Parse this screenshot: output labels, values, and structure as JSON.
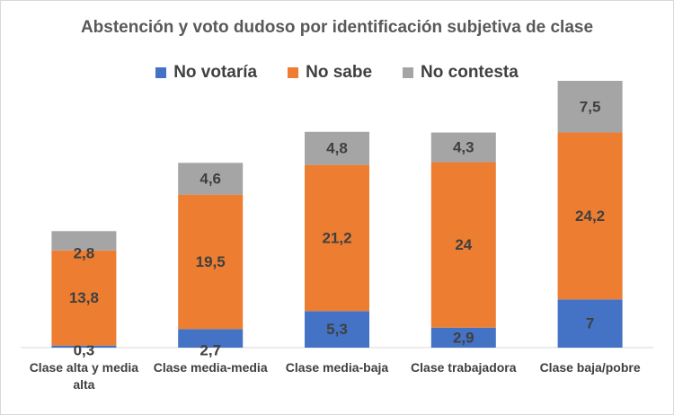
{
  "chart_data": {
    "type": "bar",
    "stacked": true,
    "title": "Abstención y voto dudoso por identificación subjetiva de clase",
    "xlabel": "",
    "ylabel": "",
    "ylim": [
      0,
      40
    ],
    "grid": false,
    "legend_position": "top",
    "categories": [
      "Clase alta y media alta",
      "Clase media-media",
      "Clase media-baja",
      "Clase trabajadora",
      "Clase baja/pobre"
    ],
    "category_lines": [
      [
        "Clase alta y media",
        "alta"
      ],
      [
        "Clase media-media"
      ],
      [
        "Clase media-baja"
      ],
      [
        "Clase trabajadora"
      ],
      [
        "Clase baja/pobre"
      ]
    ],
    "series": [
      {
        "name": "No votaría",
        "color": "#4472c4",
        "values": [
          0.3,
          2.7,
          5.3,
          2.9,
          7
        ],
        "labels": [
          "0,3",
          "2,7",
          "5,3",
          "2,9",
          "7"
        ]
      },
      {
        "name": "No sabe",
        "color": "#ed7d31",
        "values": [
          13.8,
          19.5,
          21.2,
          24,
          24.2
        ],
        "labels": [
          "13,8",
          "19,5",
          "21,2",
          "24",
          "24,2"
        ]
      },
      {
        "name": "No contesta",
        "color": "#a5a5a5",
        "values": [
          2.8,
          4.6,
          4.8,
          4.3,
          7.5
        ],
        "labels": [
          "2,8",
          "4,6",
          "4,8",
          "4,3",
          "7,5"
        ]
      }
    ]
  }
}
